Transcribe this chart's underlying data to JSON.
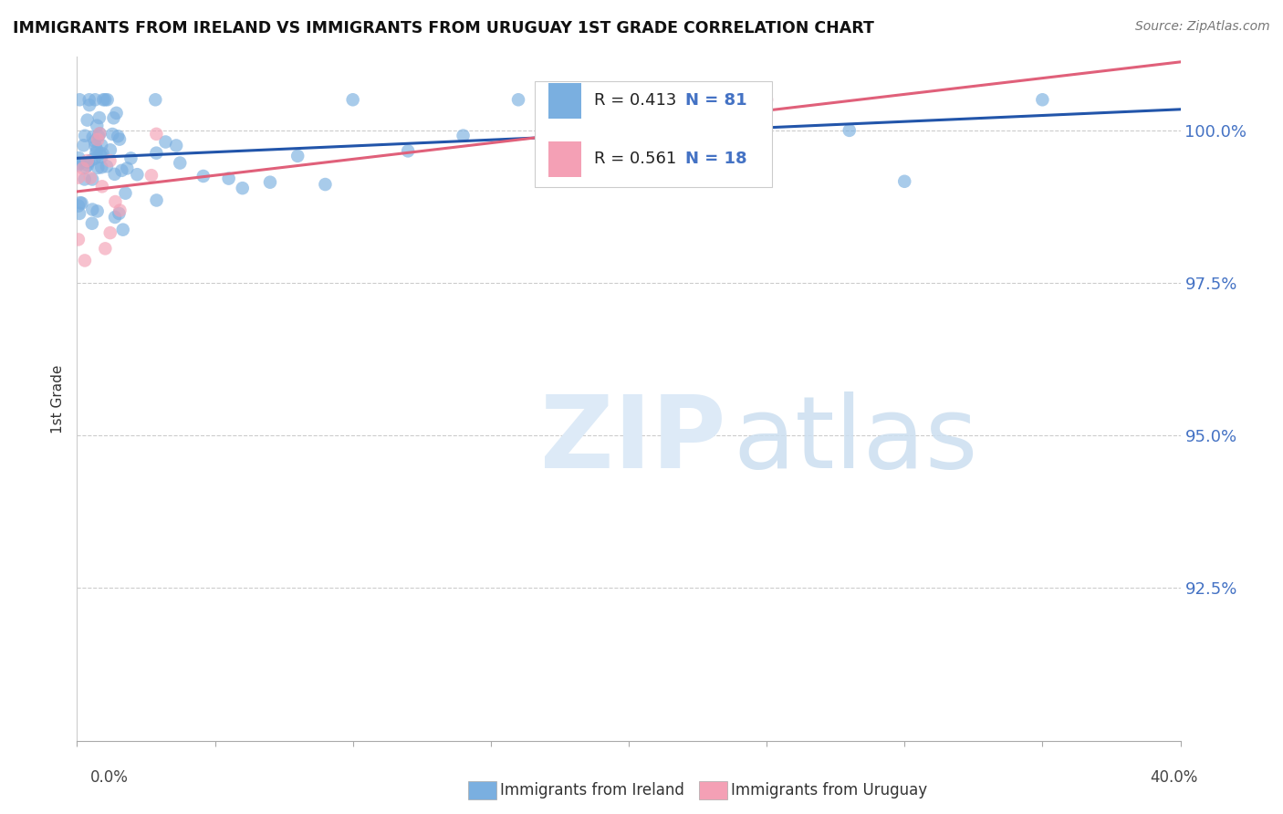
{
  "title": "IMMIGRANTS FROM IRELAND VS IMMIGRANTS FROM URUGUAY 1ST GRADE CORRELATION CHART",
  "source": "Source: ZipAtlas.com",
  "ylabel": "1st Grade",
  "y_ticks": [
    92.5,
    95.0,
    97.5,
    100.0
  ],
  "x_min": 0.0,
  "x_max": 40.0,
  "y_min": 90.0,
  "y_max": 101.2,
  "ireland_R": 0.413,
  "ireland_N": 81,
  "uruguay_R": 0.561,
  "uruguay_N": 18,
  "ireland_color": "#7aafe0",
  "uruguay_color": "#f4a0b5",
  "ireland_line_color": "#2255aa",
  "uruguay_line_color": "#e0607a",
  "legend_label_ireland": "Immigrants from Ireland",
  "legend_label_uruguay": "Immigrants from Uruguay",
  "background_color": "#ffffff",
  "grid_color": "#cccccc",
  "right_tick_color": "#4472c4"
}
